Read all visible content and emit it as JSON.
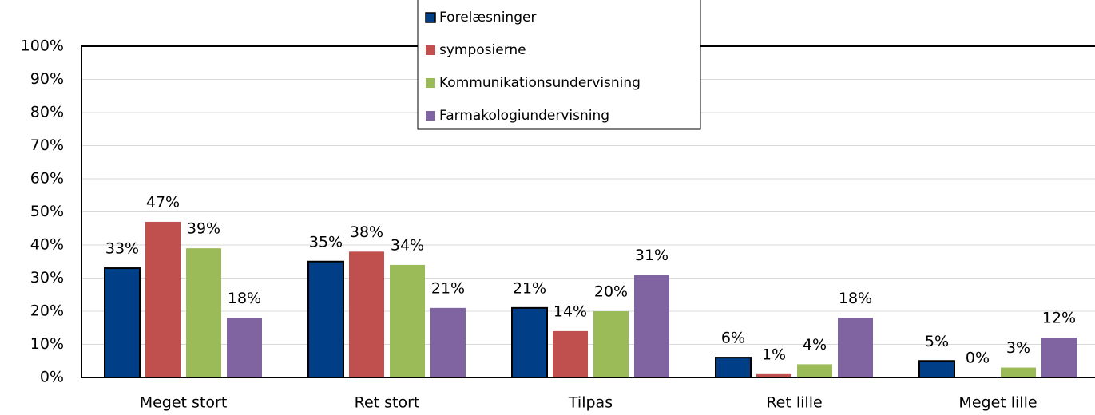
{
  "chart_data": {
    "type": "bar",
    "categories": [
      "Meget stort",
      "Ret stort",
      "Tilpas",
      "Ret  lille",
      "Meget lille"
    ],
    "series": [
      {
        "name": "Forelæsninger",
        "color": "#003f87",
        "values": [
          33,
          35,
          21,
          6,
          5
        ],
        "value_labels": [
          "33%",
          "35%",
          "21%",
          "6%",
          "5%"
        ]
      },
      {
        "name": "symposierne",
        "color": "#c0504d",
        "values": [
          47,
          38,
          14,
          1,
          0
        ],
        "value_labels": [
          "47%",
          "38%",
          "14%",
          "1%",
          "0%"
        ]
      },
      {
        "name": "Kommunikationsundervisning",
        "color": "#9bbb59",
        "values": [
          39,
          34,
          20,
          4,
          3
        ],
        "value_labels": [
          "39%",
          "34%",
          "20%",
          "4%",
          "3%"
        ]
      },
      {
        "name": "Farmakologiundervisning",
        "color": "#8064a2",
        "values": [
          18,
          21,
          31,
          18,
          12
        ],
        "value_labels": [
          "18%",
          "21%",
          "31%",
          "18%",
          "12%"
        ]
      }
    ],
    "ylim": [
      0,
      100
    ],
    "yticks": [
      {
        "value": 0,
        "label": "0%"
      },
      {
        "value": 10,
        "label": "10%"
      },
      {
        "value": 20,
        "label": "20%"
      },
      {
        "value": 30,
        "label": "30%"
      },
      {
        "value": 40,
        "label": "40%"
      },
      {
        "value": 50,
        "label": "50%"
      },
      {
        "value": 60,
        "label": "60%"
      },
      {
        "value": 70,
        "label": "70%"
      },
      {
        "value": 80,
        "label": "80%"
      },
      {
        "value": 90,
        "label": "90%"
      },
      {
        "value": 100,
        "label": "100%"
      }
    ],
    "grid": true,
    "legend": "top"
  }
}
